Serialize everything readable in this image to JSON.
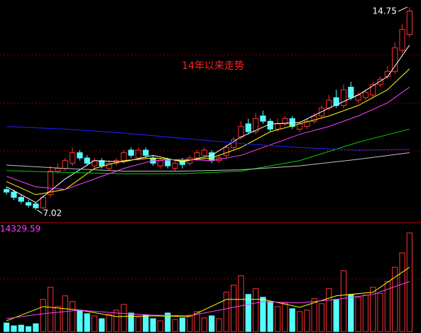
{
  "chart_data": [
    {
      "type": "candlestick",
      "title": "14年以来走势",
      "up_color": "#ff3232",
      "down_color": "#54fcfc",
      "ylim": [
        6.56,
        15.02
      ],
      "open": [
        7.8,
        7.7,
        7.5,
        7.3,
        7.25,
        7.1,
        7.6,
        8.5,
        8.6,
        8.8,
        9.2,
        9.0,
        8.7,
        8.9,
        8.6,
        8.8,
        8.9,
        9.3,
        9.0,
        9.3,
        9.0,
        8.7,
        8.9,
        8.6,
        8.9,
        8.8,
        9.0,
        9.1,
        9.2,
        8.9,
        9.1,
        9.4,
        9.8,
        10.3,
        10.0,
        10.6,
        10.4,
        10.1,
        10.3,
        10.5,
        10.1,
        10.2,
        10.4,
        10.6,
        10.9,
        11.3,
        11.0,
        11.7,
        11.2,
        11.3,
        11.4,
        11.8,
        12.1,
        12.3,
        13.1,
        13.7
      ],
      "high": [
        7.9,
        7.8,
        7.6,
        7.4,
        7.3,
        7.6,
        8.7,
        8.8,
        9.0,
        9.4,
        9.3,
        9.1,
        9.0,
        9.0,
        8.9,
        9.0,
        9.3,
        9.4,
        9.4,
        9.4,
        9.1,
        9.0,
        9.0,
        8.9,
        9.0,
        9.1,
        9.3,
        9.4,
        9.3,
        9.1,
        9.5,
        9.8,
        10.4,
        10.5,
        10.7,
        10.8,
        10.5,
        10.5,
        10.6,
        10.6,
        10.4,
        10.5,
        10.7,
        11.0,
        11.4,
        11.6,
        11.8,
        11.9,
        11.5,
        11.6,
        11.9,
        12.1,
        12.5,
        13.4,
        14.1,
        14.75
      ],
      "low": [
        7.6,
        7.4,
        7.25,
        7.1,
        7.02,
        7.05,
        7.5,
        8.4,
        8.5,
        8.7,
        8.9,
        8.7,
        8.6,
        8.6,
        8.5,
        8.7,
        8.8,
        9.0,
        8.9,
        9.0,
        8.7,
        8.6,
        8.6,
        8.5,
        8.6,
        8.7,
        8.9,
        9.0,
        8.8,
        8.8,
        9.0,
        9.3,
        9.7,
        9.9,
        9.9,
        10.3,
        10.0,
        10.0,
        10.2,
        10.1,
        10.0,
        10.1,
        10.3,
        10.5,
        10.8,
        10.9,
        10.9,
        11.2,
        11.1,
        11.2,
        11.3,
        11.7,
        12.0,
        12.2,
        13.0,
        13.6
      ],
      "close": [
        7.7,
        7.5,
        7.35,
        7.2,
        7.1,
        7.5,
        8.5,
        8.6,
        8.9,
        9.2,
        9.0,
        8.8,
        8.9,
        8.7,
        8.8,
        8.9,
        9.2,
        9.1,
        9.3,
        9.1,
        8.8,
        8.9,
        8.7,
        8.8,
        8.75,
        9.0,
        9.2,
        9.3,
        8.9,
        9.0,
        9.4,
        9.7,
        10.2,
        10.0,
        10.5,
        10.4,
        10.1,
        10.3,
        10.5,
        10.2,
        10.3,
        10.4,
        10.6,
        10.9,
        11.2,
        11.0,
        11.6,
        11.3,
        11.4,
        11.5,
        11.8,
        12.0,
        12.3,
        13.2,
        13.9,
        14.6
      ],
      "series": [
        {
          "color": "#ffffff",
          "x": [
            0,
            4,
            8,
            12,
            16,
            20,
            24,
            28,
            32,
            36,
            40,
            44,
            48,
            52,
            55
          ],
          "values": [
            7.9,
            7.3,
            8.2,
            8.9,
            8.85,
            9.1,
            8.85,
            9.1,
            9.8,
            10.3,
            10.35,
            10.9,
            11.4,
            12.1,
            13.3
          ]
        },
        {
          "color": "#ffff00",
          "x": [
            0,
            4,
            8,
            12,
            16,
            20,
            24,
            28,
            32,
            36,
            40,
            44,
            48,
            52,
            55
          ],
          "values": [
            8.1,
            7.6,
            7.8,
            8.6,
            8.9,
            9.0,
            8.9,
            9.0,
            9.4,
            10.0,
            10.3,
            10.6,
            11.0,
            11.6,
            12.4
          ]
        },
        {
          "color": "#ff40ff",
          "x": [
            0,
            4,
            8,
            12,
            16,
            20,
            24,
            28,
            32,
            36,
            40,
            44,
            48,
            52,
            55
          ],
          "values": [
            8.3,
            7.9,
            7.8,
            8.2,
            8.6,
            8.9,
            8.95,
            8.9,
            9.1,
            9.5,
            9.9,
            10.2,
            10.6,
            11.1,
            11.7
          ]
        },
        {
          "color": "#00d000",
          "x": [
            0,
            8,
            16,
            24,
            32,
            40,
            48,
            55
          ],
          "values": [
            8.52,
            8.45,
            8.4,
            8.4,
            8.5,
            8.9,
            9.6,
            10.1
          ]
        },
        {
          "color": "#2020ff",
          "x": [
            0,
            8,
            16,
            24,
            32,
            40,
            48,
            55
          ],
          "values": [
            10.2,
            10.1,
            9.95,
            9.75,
            9.55,
            9.4,
            9.3,
            9.33
          ]
        },
        {
          "color": "#c0c0c0",
          "x": [
            0,
            8,
            16,
            24,
            32,
            40,
            48,
            55
          ],
          "values": [
            8.73,
            8.6,
            8.5,
            8.5,
            8.55,
            8.7,
            8.95,
            9.2
          ]
        }
      ]
    },
    {
      "type": "bar",
      "ylim": [
        0,
        14329.59
      ],
      "yticks": [
        14329.59
      ],
      "values": [
        1200,
        800,
        900,
        700,
        1100,
        4500,
        6200,
        3500,
        5000,
        4200,
        3000,
        2500,
        2200,
        1800,
        2400,
        3000,
        3800,
        2600,
        2000,
        2300,
        1800,
        1500,
        2600,
        1700,
        1900,
        2300,
        2800,
        1900,
        2200,
        1800,
        5500,
        6500,
        7800,
        5200,
        6000,
        4800,
        4200,
        3500,
        4000,
        3200,
        2800,
        3000,
        4600,
        3900,
        6000,
        4500,
        8500,
        5200,
        4800,
        5100,
        6200,
        5300,
        7000,
        9000,
        11000,
        13800
      ],
      "series": [
        {
          "color": "#ffff00",
          "x": [
            0,
            5,
            10,
            15,
            20,
            25,
            30,
            35,
            40,
            45,
            50,
            55
          ],
          "values": [
            1500,
            3500,
            3000,
            2100,
            2200,
            2100,
            4500,
            4500,
            3400,
            5000,
            5500,
            9000
          ]
        },
        {
          "color": "#ff40ff",
          "x": [
            0,
            5,
            10,
            15,
            20,
            25,
            30,
            35,
            40,
            45,
            50,
            55
          ],
          "values": [
            1800,
            2500,
            3000,
            2600,
            2300,
            2200,
            3200,
            4200,
            4000,
            4500,
            5200,
            7000
          ]
        }
      ]
    }
  ]
}
